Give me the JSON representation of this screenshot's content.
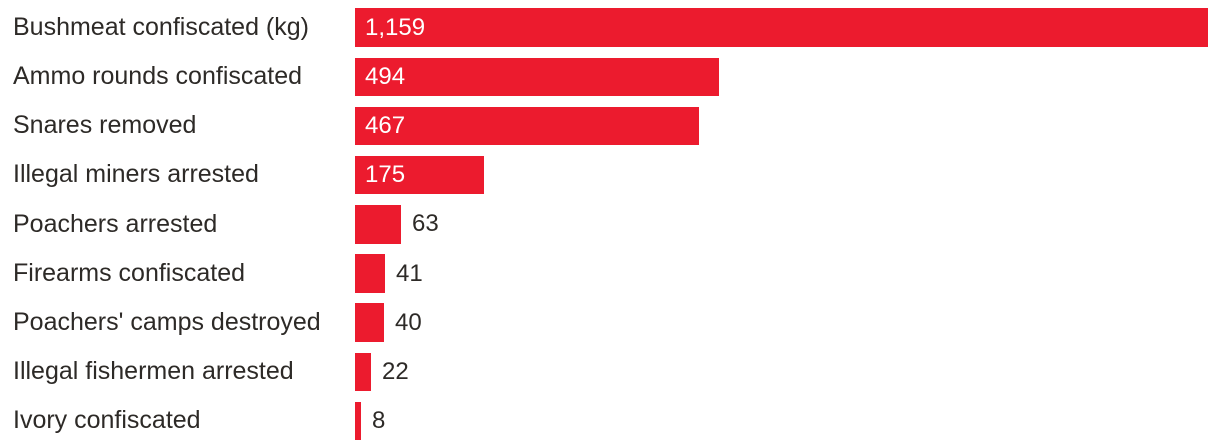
{
  "chart_data": {
    "type": "bar",
    "orientation": "horizontal",
    "title": "",
    "xlabel": "",
    "ylabel": "",
    "xlim": [
      0,
      1159
    ],
    "grid": false,
    "legend": false,
    "bar_color": "#EC1B2E",
    "label_color": "#2D2A27",
    "value_inside_color": "#FFFFFF",
    "value_outside_color": "#2D2A27",
    "categories": [
      "Bushmeat confiscated (kg)",
      "Ammo rounds confiscated",
      "Snares removed",
      "Illegal miners arrested",
      "Poachers arrested",
      "Firearms confiscated",
      "Poachers' camps destroyed",
      "Illegal fishermen arrested",
      "Ivory confiscated"
    ],
    "values": [
      1159,
      494,
      467,
      175,
      63,
      41,
      40,
      22,
      8
    ],
    "value_labels": [
      "1,159",
      "494",
      "467",
      "175",
      "63",
      "41",
      "40",
      "22",
      "8"
    ]
  }
}
